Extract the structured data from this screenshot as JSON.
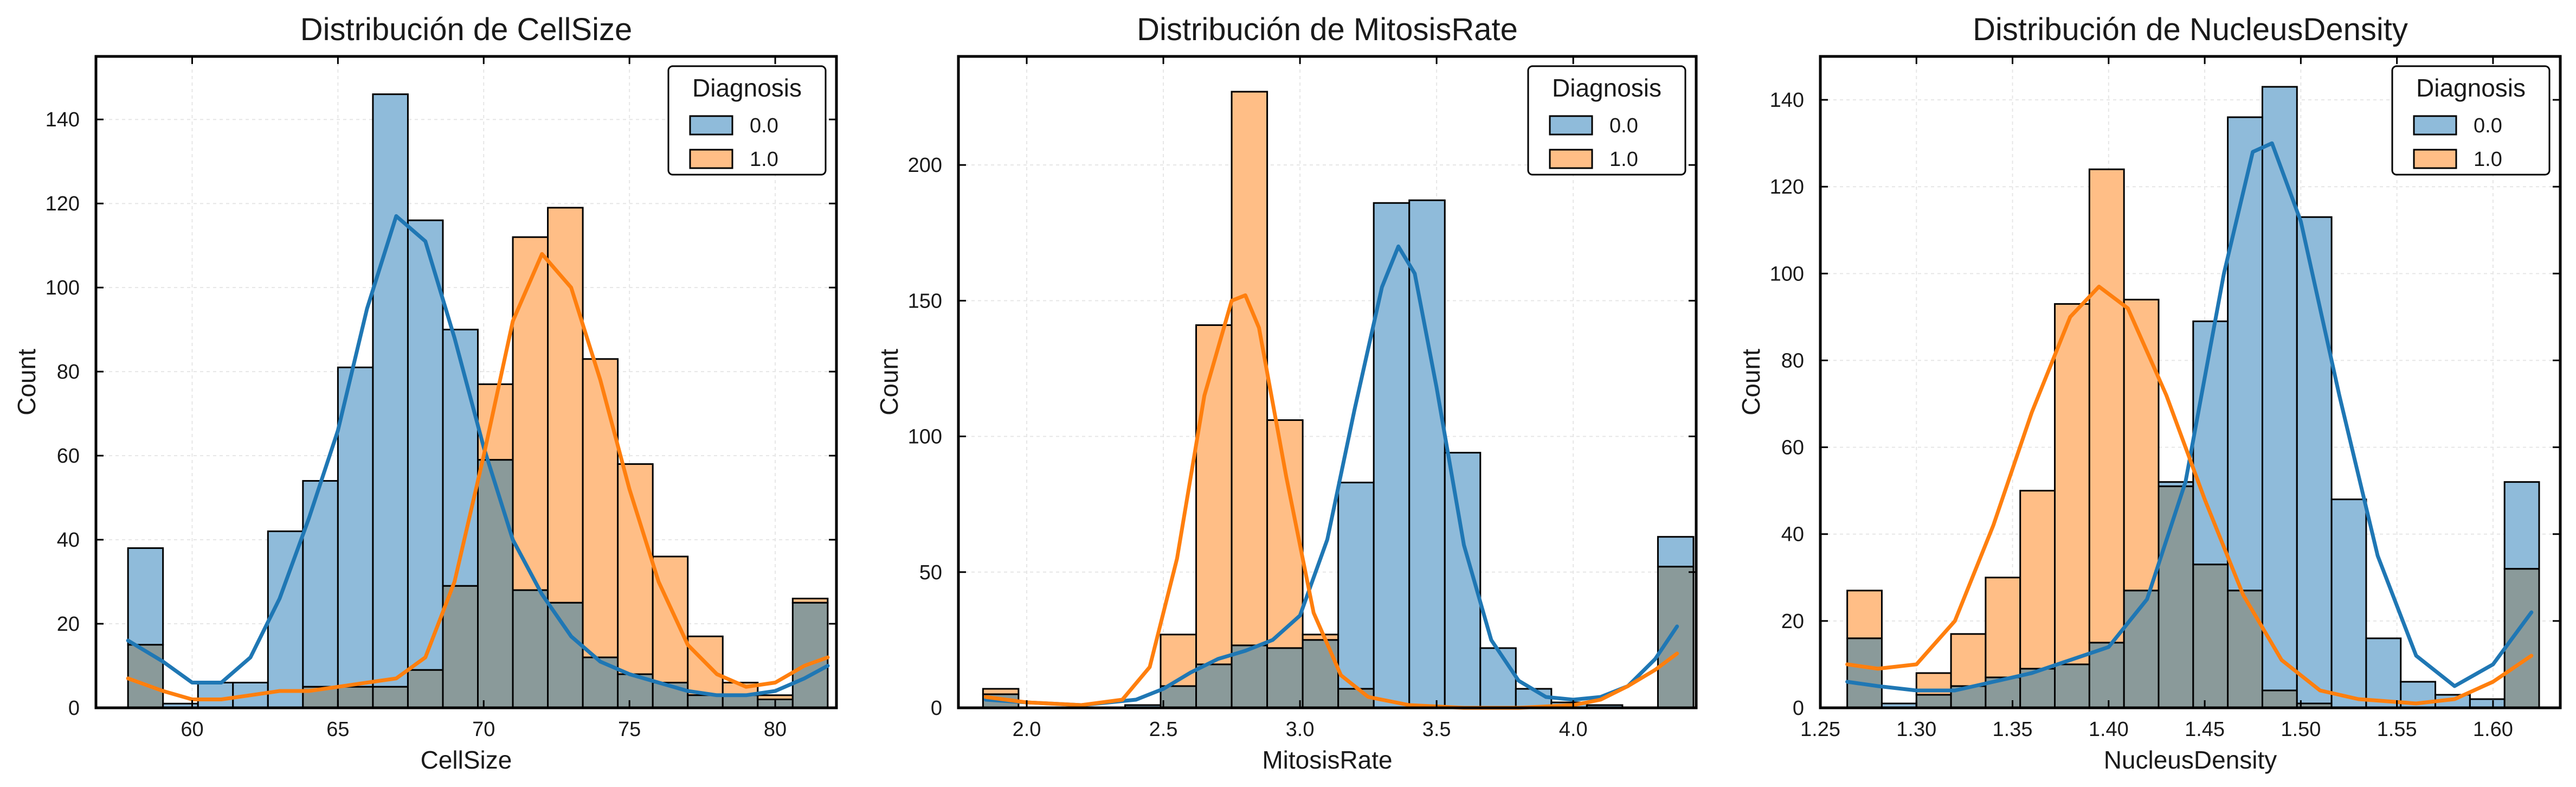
{
  "colors": {
    "class0": "#1f77b4",
    "class1": "#ff7f0e",
    "class0_fill": "#8fbbda",
    "class1_fill": "#ffbe86",
    "overlap_fill": "#8a9a9a"
  },
  "chart_data": [
    {
      "type": "histogram",
      "title": "Distribución de CellSize",
      "xlabel": "CellSize",
      "ylabel": "Count",
      "xlim": [
        56.7,
        82.1
      ],
      "ylim": [
        0,
        155
      ],
      "xticks": [
        60,
        65,
        70,
        75,
        80
      ],
      "yticks": [
        0,
        20,
        40,
        60,
        80,
        100,
        120,
        140
      ],
      "tick_decimals": 0,
      "grid": true,
      "legend": {
        "title": "Diagnosis",
        "placement": "top-right",
        "entries": [
          "0.0",
          "1.0"
        ]
      },
      "bin_edges": [
        57.8,
        59.0,
        60.2,
        61.4,
        62.6,
        63.8,
        65.0,
        66.2,
        67.4,
        68.6,
        69.8,
        71.0,
        72.2,
        73.4,
        74.6,
        75.8,
        77.0,
        78.2,
        79.4,
        80.6,
        81.8
      ],
      "series": [
        {
          "name": "0.0",
          "counts": [
            38,
            1,
            6,
            6,
            42,
            54,
            81,
            146,
            116,
            90,
            59,
            28,
            25,
            12,
            8,
            6,
            3,
            3,
            2,
            25
          ],
          "kde": [
            [
              57.8,
              16
            ],
            [
              59,
              11
            ],
            [
              60,
              6
            ],
            [
              61,
              6
            ],
            [
              62,
              12
            ],
            [
              63,
              26
            ],
            [
              64,
              45
            ],
            [
              65,
              66
            ],
            [
              66,
              95
            ],
            [
              67,
              117
            ],
            [
              68,
              111
            ],
            [
              69,
              88
            ],
            [
              70,
              62
            ],
            [
              71,
              40
            ],
            [
              72,
              27
            ],
            [
              73,
              17
            ],
            [
              74,
              11
            ],
            [
              75,
              8
            ],
            [
              76,
              6
            ],
            [
              77,
              4
            ],
            [
              78,
              3
            ],
            [
              79,
              3
            ],
            [
              80,
              4
            ],
            [
              81,
              7
            ],
            [
              81.8,
              10
            ]
          ]
        },
        {
          "name": "1.0",
          "counts": [
            15,
            0,
            0,
            0,
            0,
            5,
            5,
            5,
            9,
            29,
            77,
            112,
            119,
            83,
            58,
            36,
            17,
            6,
            3,
            26
          ],
          "kde": [
            [
              57.8,
              7
            ],
            [
              59,
              4
            ],
            [
              60,
              2
            ],
            [
              61,
              2
            ],
            [
              62,
              3
            ],
            [
              63,
              4
            ],
            [
              64,
              4
            ],
            [
              65,
              5
            ],
            [
              66,
              6
            ],
            [
              67,
              7
            ],
            [
              68,
              12
            ],
            [
              69,
              30
            ],
            [
              70,
              60
            ],
            [
              71,
              92
            ],
            [
              72,
              108
            ],
            [
              73,
              100
            ],
            [
              74,
              78
            ],
            [
              75,
              52
            ],
            [
              76,
              30
            ],
            [
              77,
              15
            ],
            [
              78,
              8
            ],
            [
              79,
              5
            ],
            [
              80,
              6
            ],
            [
              81,
              10
            ],
            [
              81.8,
              12
            ]
          ]
        }
      ]
    },
    {
      "type": "histogram",
      "title": "Distribución de MitosisRate",
      "xlabel": "MitosisRate",
      "ylabel": "Count",
      "xlim": [
        1.75,
        4.45
      ],
      "ylim": [
        0,
        240
      ],
      "xticks": [
        2.0,
        2.5,
        3.0,
        3.5,
        4.0,
        4.5
      ],
      "yticks": [
        0,
        50,
        100,
        150,
        200
      ],
      "tick_decimals": 1,
      "grid": true,
      "legend": {
        "title": "Diagnosis",
        "placement": "top-right",
        "entries": [
          "0.0",
          "1.0"
        ]
      },
      "bin_edges": [
        1.84,
        1.97,
        2.1,
        2.23,
        2.36,
        2.49,
        2.62,
        2.75,
        2.88,
        3.01,
        3.14,
        3.27,
        3.4,
        3.53,
        3.66,
        3.79,
        3.92,
        4.05,
        4.18,
        4.31,
        4.44
      ],
      "series": [
        {
          "name": "0.0",
          "counts": [
            5,
            0,
            0,
            0,
            1,
            8,
            16,
            23,
            22,
            25,
            83,
            186,
            187,
            94,
            22,
            7,
            2,
            1,
            0,
            63
          ],
          "kde": [
            [
              1.85,
              3
            ],
            [
              2.0,
              2
            ],
            [
              2.2,
              1
            ],
            [
              2.4,
              3
            ],
            [
              2.5,
              7
            ],
            [
              2.6,
              13
            ],
            [
              2.7,
              18
            ],
            [
              2.8,
              21
            ],
            [
              2.9,
              25
            ],
            [
              3.0,
              34
            ],
            [
              3.1,
              62
            ],
            [
              3.2,
              110
            ],
            [
              3.3,
              155
            ],
            [
              3.36,
              170
            ],
            [
              3.42,
              160
            ],
            [
              3.5,
              118
            ],
            [
              3.6,
              60
            ],
            [
              3.7,
              25
            ],
            [
              3.8,
              10
            ],
            [
              3.9,
              4
            ],
            [
              4.0,
              3
            ],
            [
              4.1,
              4
            ],
            [
              4.2,
              8
            ],
            [
              4.3,
              18
            ],
            [
              4.38,
              30
            ]
          ]
        },
        {
          "name": "1.0",
          "counts": [
            7,
            0,
            0,
            0,
            0,
            27,
            141,
            227,
            106,
            27,
            7,
            0,
            0,
            0,
            0,
            0,
            0,
            0,
            0,
            52
          ],
          "kde": [
            [
              1.85,
              4
            ],
            [
              2.0,
              2
            ],
            [
              2.2,
              1
            ],
            [
              2.35,
              3
            ],
            [
              2.45,
              15
            ],
            [
              2.55,
              55
            ],
            [
              2.65,
              115
            ],
            [
              2.75,
              150
            ],
            [
              2.8,
              152
            ],
            [
              2.85,
              140
            ],
            [
              2.95,
              85
            ],
            [
              3.05,
              35
            ],
            [
              3.15,
              12
            ],
            [
              3.25,
              4
            ],
            [
              3.4,
              1
            ],
            [
              3.6,
              0
            ],
            [
              3.8,
              0
            ],
            [
              4.0,
              1
            ],
            [
              4.1,
              3
            ],
            [
              4.2,
              8
            ],
            [
              4.3,
              14
            ],
            [
              4.38,
              20
            ]
          ]
        }
      ]
    },
    {
      "type": "histogram",
      "title": "Distribución de NucleusDensity",
      "xlabel": "NucleusDensity",
      "ylabel": "Count",
      "xlim": [
        1.25,
        1.635
      ],
      "ylim": [
        0,
        150
      ],
      "xticks": [
        1.25,
        1.3,
        1.35,
        1.4,
        1.45,
        1.5,
        1.55,
        1.6
      ],
      "yticks": [
        0,
        20,
        40,
        60,
        80,
        100,
        120,
        140
      ],
      "tick_decimals": 2,
      "grid": true,
      "legend": {
        "title": "Diagnosis",
        "placement": "top-right",
        "entries": [
          "0.0",
          "1.0"
        ]
      },
      "bin_edges": [
        1.264,
        1.282,
        1.3,
        1.318,
        1.336,
        1.354,
        1.372,
        1.39,
        1.408,
        1.426,
        1.444,
        1.462,
        1.48,
        1.498,
        1.516,
        1.534,
        1.552,
        1.57,
        1.588,
        1.606,
        1.624
      ],
      "series": [
        {
          "name": "0.0",
          "counts": [
            16,
            1,
            3,
            5,
            7,
            9,
            10,
            15,
            27,
            52,
            89,
            136,
            143,
            113,
            48,
            16,
            6,
            3,
            2,
            52
          ],
          "kde": [
            [
              1.264,
              6
            ],
            [
              1.28,
              5
            ],
            [
              1.3,
              4
            ],
            [
              1.32,
              4
            ],
            [
              1.34,
              6
            ],
            [
              1.36,
              8
            ],
            [
              1.38,
              11
            ],
            [
              1.4,
              14
            ],
            [
              1.42,
              25
            ],
            [
              1.44,
              52
            ],
            [
              1.46,
              100
            ],
            [
              1.475,
              128
            ],
            [
              1.485,
              130
            ],
            [
              1.5,
              112
            ],
            [
              1.52,
              72
            ],
            [
              1.54,
              35
            ],
            [
              1.56,
              12
            ],
            [
              1.58,
              5
            ],
            [
              1.6,
              10
            ],
            [
              1.62,
              22
            ]
          ]
        },
        {
          "name": "1.0",
          "counts": [
            27,
            0,
            8,
            17,
            30,
            50,
            93,
            124,
            94,
            51,
            33,
            27,
            4,
            1,
            0,
            0,
            0,
            0,
            0,
            32
          ],
          "kde": [
            [
              1.264,
              10
            ],
            [
              1.28,
              9
            ],
            [
              1.3,
              10
            ],
            [
              1.32,
              20
            ],
            [
              1.34,
              42
            ],
            [
              1.36,
              68
            ],
            [
              1.38,
              90
            ],
            [
              1.395,
              97
            ],
            [
              1.41,
              92
            ],
            [
              1.43,
              72
            ],
            [
              1.45,
              48
            ],
            [
              1.47,
              26
            ],
            [
              1.49,
              11
            ],
            [
              1.51,
              4
            ],
            [
              1.53,
              2
            ],
            [
              1.56,
              1
            ],
            [
              1.58,
              2
            ],
            [
              1.6,
              6
            ],
            [
              1.62,
              12
            ]
          ]
        }
      ]
    }
  ]
}
